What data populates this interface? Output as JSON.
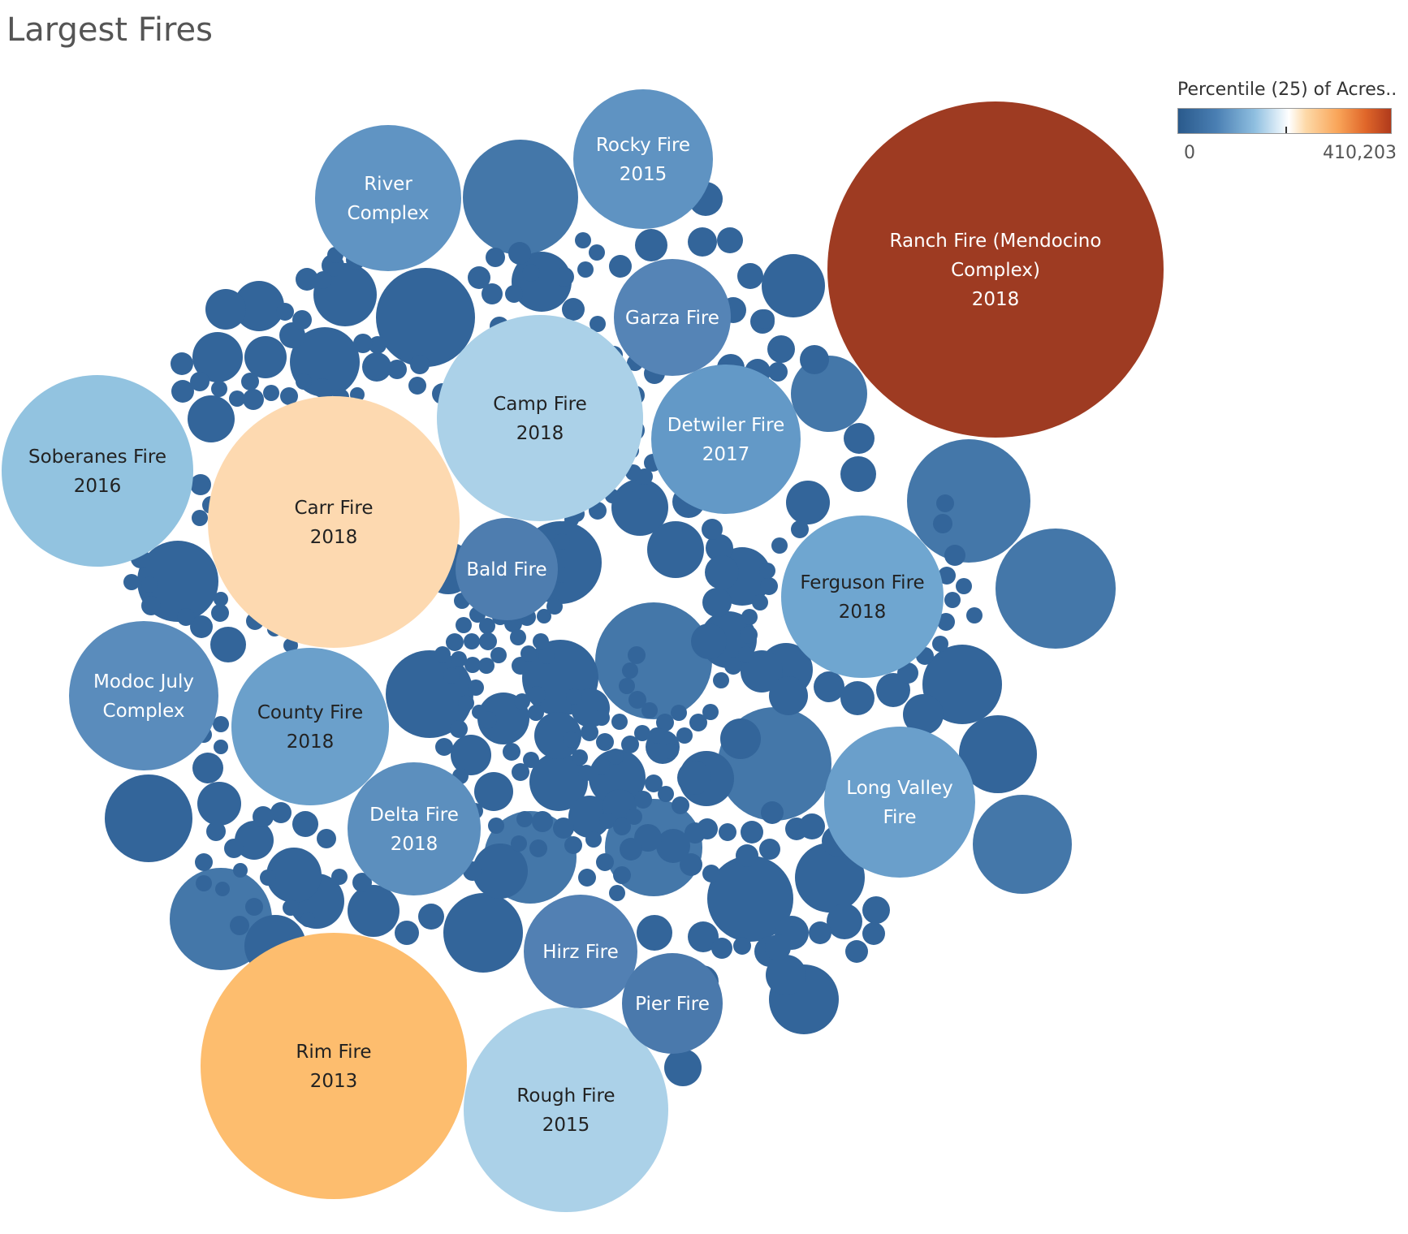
{
  "title": "Largest Fires",
  "legend": {
    "title": "Percentile (25) of Acres..",
    "min_label": "0",
    "max_label": "410,203",
    "min": 0,
    "max": 410203
  },
  "chart_data": {
    "type": "packed-bubble",
    "title": "Largest Fires",
    "color_measure": "Percentile (25) of Acres",
    "color_range": [
      0,
      410203
    ],
    "color_ramp": [
      "#2a5a8c",
      "#4a7fb3",
      "#8fbfe0",
      "#ffffff",
      "#fdd9a8",
      "#f9a559",
      "#b03a1c"
    ],
    "labeled_bubbles": [
      {
        "name": "Ranch Fire (Mendocino Complex)",
        "lines": [
          "Ranch Fire (Mendocino",
          "Complex)",
          "2018"
        ],
        "year": "2018",
        "color": "#9e3b22",
        "text_color": "#ffffff"
      },
      {
        "name": "Rim Fire",
        "lines": [
          "Rim Fire",
          "2013"
        ],
        "year": "2013",
        "color": "#fdbd6e",
        "text_color": "#222222"
      },
      {
        "name": "Carr Fire",
        "lines": [
          "Carr Fire",
          "2018"
        ],
        "year": "2018",
        "color": "#fdd9b0",
        "text_color": "#222222"
      },
      {
        "name": "Camp Fire",
        "lines": [
          "Camp Fire",
          "2018"
        ],
        "year": "2018",
        "color": "#abd1e8",
        "text_color": "#222222"
      },
      {
        "name": "Rough Fire",
        "lines": [
          "Rough Fire",
          "2015"
        ],
        "year": "2015",
        "color": "#abd1e8",
        "text_color": "#222222"
      },
      {
        "name": "Soberanes Fire",
        "lines": [
          "Soberanes Fire",
          "2016"
        ],
        "year": "2016",
        "color": "#92c3e0",
        "text_color": "#222222"
      },
      {
        "name": "Ferguson Fire",
        "lines": [
          "Ferguson Fire",
          "2018"
        ],
        "year": "2018",
        "color": "#6fa6d0",
        "text_color": "#222222"
      },
      {
        "name": "County Fire",
        "lines": [
          "County Fire",
          "2018"
        ],
        "year": "2018",
        "color": "#6ba0cb",
        "text_color": "#222222"
      },
      {
        "name": "Detwiler Fire",
        "lines": [
          "Detwiler Fire",
          "2017"
        ],
        "year": "2017",
        "color": "#6399c7",
        "text_color": "#ffffff"
      },
      {
        "name": "Long Valley Fire",
        "lines": [
          "Long Valley",
          "Fire"
        ],
        "color": "#6a9fcb",
        "text_color": "#ffffff"
      },
      {
        "name": "Rocky Fire",
        "lines": [
          "Rocky Fire",
          "2015"
        ],
        "year": "2015",
        "color": "#5f93c2",
        "text_color": "#ffffff"
      },
      {
        "name": "River Complex",
        "lines": [
          "River",
          "Complex"
        ],
        "color": "#6094c3",
        "text_color": "#ffffff"
      },
      {
        "name": "Delta Fire",
        "lines": [
          "Delta Fire",
          "2018"
        ],
        "year": "2018",
        "color": "#5c8fbe",
        "text_color": "#ffffff"
      },
      {
        "name": "Modoc July Complex",
        "lines": [
          "Modoc July",
          "Complex"
        ],
        "color": "#5a8cbc",
        "text_color": "#ffffff"
      },
      {
        "name": "Garza Fire",
        "lines": [
          "Garza Fire"
        ],
        "color": "#5584b6",
        "text_color": "#ffffff"
      },
      {
        "name": "Hirz Fire",
        "lines": [
          "Hirz Fire"
        ],
        "color": "#5280b3",
        "text_color": "#ffffff"
      },
      {
        "name": "Bald Fire",
        "lines": [
          "Bald Fire"
        ],
        "color": "#4e7daf",
        "text_color": "#ffffff"
      },
      {
        "name": "Pier Fire",
        "lines": [
          "Pier Fire"
        ],
        "color": "#4a79ac",
        "text_color": "#ffffff"
      }
    ],
    "unlabeled_color_dark": "#33659a",
    "unlabeled_color_mid": "#4477a9",
    "unlabeled_color_light": "#5183b5"
  }
}
